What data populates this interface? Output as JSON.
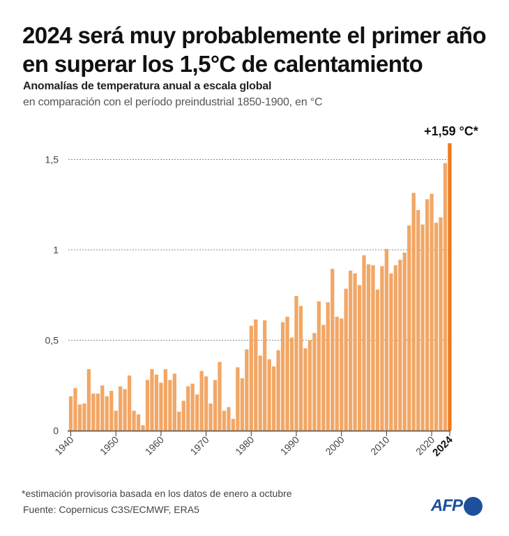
{
  "header": {
    "title": "2024 será muy probablemente el primer año en superar los 1,5°C de calentamiento",
    "subtitle": "Anomalías de temperatura anual a escala global",
    "subtitle2": "en comparación con el período preindustrial 1850-1900, en °C"
  },
  "footer": {
    "footnote": "*estimación provisoria basada en los datos de enero a octubre",
    "source": "Fuente: Copernicus C3S/ECMWF, ERA5",
    "logo": "AFP"
  },
  "colors": {
    "bar": "#F2A766",
    "highlight_bar": "#EE7A1F",
    "grid": "#888888",
    "axis": "#7a6a5a",
    "logo": "#1D4F9C"
  },
  "chart_data": {
    "type": "bar",
    "title": "2024 será muy probablemente el primer año en superar los 1,5°C de calentamiento",
    "xlabel": "",
    "ylabel": "°C",
    "ylim": [
      0,
      1.6
    ],
    "yticks": [
      0,
      0.5,
      1,
      1.5
    ],
    "ytick_labels": [
      "0",
      "0,5",
      "1",
      "1,5"
    ],
    "xticks": [
      1940,
      1950,
      1960,
      1970,
      1980,
      1990,
      2000,
      2010,
      2020,
      2024
    ],
    "xtick_labels": [
      "1940",
      "1950",
      "1960",
      "1970",
      "1980",
      "1990",
      "2000",
      "2010",
      "2020",
      "2024"
    ],
    "grid": "horizontal dotted",
    "annotation": {
      "year": 2024,
      "text": "+1,59 °C*"
    },
    "highlight_year": 2024,
    "x": [
      1940,
      1941,
      1942,
      1943,
      1944,
      1945,
      1946,
      1947,
      1948,
      1949,
      1950,
      1951,
      1952,
      1953,
      1954,
      1955,
      1956,
      1957,
      1958,
      1959,
      1960,
      1961,
      1962,
      1963,
      1964,
      1965,
      1966,
      1967,
      1968,
      1969,
      1970,
      1971,
      1972,
      1973,
      1974,
      1975,
      1976,
      1977,
      1978,
      1979,
      1980,
      1981,
      1982,
      1983,
      1984,
      1985,
      1986,
      1987,
      1988,
      1989,
      1990,
      1991,
      1992,
      1993,
      1994,
      1995,
      1996,
      1997,
      1998,
      1999,
      2000,
      2001,
      2002,
      2003,
      2004,
      2005,
      2006,
      2007,
      2008,
      2009,
      2010,
      2011,
      2012,
      2013,
      2014,
      2015,
      2016,
      2017,
      2018,
      2019,
      2020,
      2021,
      2022,
      2023,
      2024
    ],
    "values": [
      0.19,
      0.235,
      0.145,
      0.15,
      0.34,
      0.205,
      0.205,
      0.25,
      0.19,
      0.22,
      0.11,
      0.245,
      0.23,
      0.305,
      0.11,
      0.09,
      0.03,
      0.28,
      0.34,
      0.31,
      0.265,
      0.34,
      0.28,
      0.315,
      0.105,
      0.165,
      0.245,
      0.26,
      0.2,
      0.33,
      0.3,
      0.15,
      0.28,
      0.38,
      0.11,
      0.13,
      0.065,
      0.35,
      0.29,
      0.45,
      0.58,
      0.615,
      0.415,
      0.61,
      0.395,
      0.355,
      0.445,
      0.6,
      0.63,
      0.515,
      0.745,
      0.69,
      0.455,
      0.5,
      0.54,
      0.715,
      0.585,
      0.71,
      0.895,
      0.63,
      0.62,
      0.785,
      0.885,
      0.87,
      0.805,
      0.97,
      0.92,
      0.915,
      0.78,
      0.91,
      1.005,
      0.87,
      0.915,
      0.945,
      0.985,
      1.135,
      1.315,
      1.22,
      1.14,
      1.28,
      1.31,
      1.15,
      1.18,
      1.48,
      1.59
    ]
  }
}
